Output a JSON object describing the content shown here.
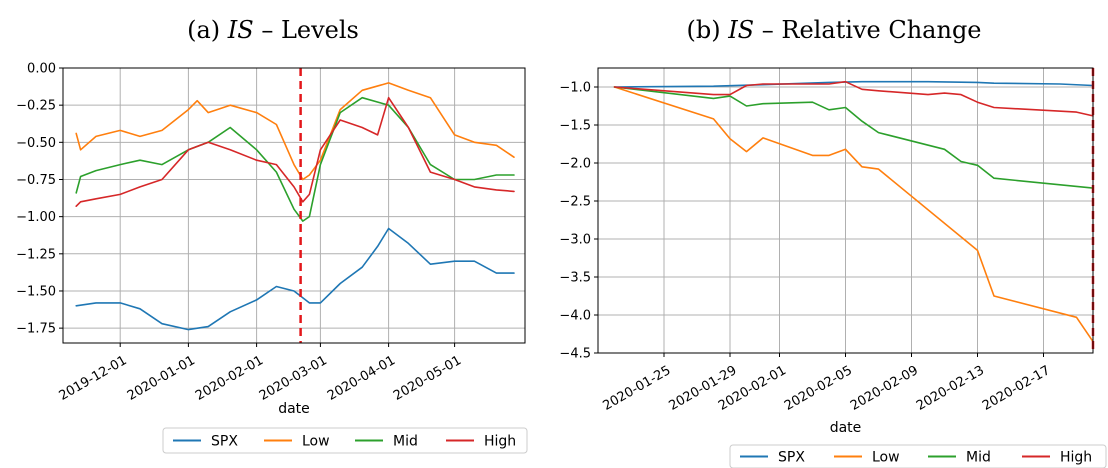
{
  "chart_data": [
    {
      "type": "line",
      "panel": "(a)",
      "title_prefix": "(a)",
      "title_var": "IS",
      "title_suffix": "– Levels",
      "xlabel": "date",
      "ylabel": "",
      "x_type": "date",
      "xlim": [
        "2019-11-05",
        "2020-06-02"
      ],
      "ylim": [
        -1.85,
        0.0
      ],
      "yticks": [
        0.0,
        -0.25,
        -0.5,
        -0.75,
        -1.0,
        -1.25,
        -1.5,
        -1.75
      ],
      "ytick_labels": [
        "0.00",
        "−0.25",
        "−0.50",
        "−0.75",
        "−1.00",
        "−1.25",
        "−1.50",
        "−1.75"
      ],
      "xticks": [
        "2019-12-01",
        "2020-01-01",
        "2020-02-01",
        "2020-03-01",
        "2020-04-01",
        "2020-05-01"
      ],
      "xtick_labels": [
        "2019-12-01",
        "2020-01-01",
        "2020-02-01",
        "2020-03-01",
        "2020-04-01",
        "2020-05-01"
      ],
      "vline_x": "2020-02-21",
      "grid": true,
      "legend": {
        "placement": "bottom-center",
        "entries": [
          "SPX",
          "Low",
          "Mid",
          "High"
        ]
      },
      "series": [
        {
          "name": "SPX",
          "color": "#1f77b4",
          "x": [
            "2019-11-11",
            "2019-11-20",
            "2019-12-01",
            "2019-12-10",
            "2019-12-20",
            "2020-01-01",
            "2020-01-10",
            "2020-01-20",
            "2020-02-01",
            "2020-02-10",
            "2020-02-18",
            "2020-02-25",
            "2020-03-01",
            "2020-03-10",
            "2020-03-20",
            "2020-03-27",
            "2020-04-01",
            "2020-04-10",
            "2020-04-20",
            "2020-05-01",
            "2020-05-10",
            "2020-05-20",
            "2020-05-28"
          ],
          "y": [
            -1.6,
            -1.58,
            -1.58,
            -1.62,
            -1.72,
            -1.76,
            -1.74,
            -1.64,
            -1.56,
            -1.47,
            -1.5,
            -1.58,
            -1.58,
            -1.45,
            -1.34,
            -1.2,
            -1.08,
            -1.18,
            -1.32,
            -1.3,
            -1.3,
            -1.38,
            -1.38
          ]
        },
        {
          "name": "Low",
          "color": "#ff7f0e",
          "x": [
            "2019-11-11",
            "2019-11-13",
            "2019-11-20",
            "2019-12-01",
            "2019-12-10",
            "2019-12-20",
            "2020-01-01",
            "2020-01-05",
            "2020-01-10",
            "2020-01-20",
            "2020-02-01",
            "2020-02-10",
            "2020-02-18",
            "2020-02-22",
            "2020-02-25",
            "2020-03-01",
            "2020-03-10",
            "2020-03-20",
            "2020-04-01",
            "2020-04-10",
            "2020-04-20",
            "2020-05-01",
            "2020-05-10",
            "2020-05-20",
            "2020-05-28"
          ],
          "y": [
            -0.44,
            -0.55,
            -0.46,
            -0.42,
            -0.46,
            -0.42,
            -0.28,
            -0.22,
            -0.3,
            -0.25,
            -0.3,
            -0.38,
            -0.65,
            -0.75,
            -0.72,
            -0.62,
            -0.28,
            -0.15,
            -0.1,
            -0.15,
            -0.2,
            -0.45,
            -0.5,
            -0.52,
            -0.6
          ]
        },
        {
          "name": "Mid",
          "color": "#2ca02c",
          "x": [
            "2019-11-11",
            "2019-11-13",
            "2019-11-20",
            "2019-12-01",
            "2019-12-10",
            "2019-12-20",
            "2020-01-01",
            "2020-01-10",
            "2020-01-20",
            "2020-02-01",
            "2020-02-10",
            "2020-02-18",
            "2020-02-22",
            "2020-02-25",
            "2020-03-01",
            "2020-03-10",
            "2020-03-20",
            "2020-04-01",
            "2020-04-10",
            "2020-04-20",
            "2020-05-01",
            "2020-05-10",
            "2020-05-20",
            "2020-05-28"
          ],
          "y": [
            -0.84,
            -0.73,
            -0.69,
            -0.65,
            -0.62,
            -0.65,
            -0.55,
            -0.5,
            -0.4,
            -0.55,
            -0.7,
            -0.95,
            -1.03,
            -1.0,
            -0.65,
            -0.3,
            -0.2,
            -0.25,
            -0.4,
            -0.65,
            -0.75,
            -0.75,
            -0.72,
            -0.72
          ]
        },
        {
          "name": "High",
          "color": "#d62728",
          "x": [
            "2019-11-11",
            "2019-11-13",
            "2019-11-20",
            "2019-12-01",
            "2019-12-10",
            "2019-12-20",
            "2020-01-01",
            "2020-01-10",
            "2020-01-20",
            "2020-02-01",
            "2020-02-10",
            "2020-02-18",
            "2020-02-22",
            "2020-02-25",
            "2020-03-01",
            "2020-03-10",
            "2020-03-20",
            "2020-03-27",
            "2020-04-01",
            "2020-04-10",
            "2020-04-20",
            "2020-05-01",
            "2020-05-10",
            "2020-05-20",
            "2020-05-28"
          ],
          "y": [
            -0.93,
            -0.9,
            -0.88,
            -0.85,
            -0.8,
            -0.75,
            -0.55,
            -0.5,
            -0.55,
            -0.62,
            -0.65,
            -0.8,
            -0.9,
            -0.85,
            -0.55,
            -0.35,
            -0.4,
            -0.45,
            -0.2,
            -0.4,
            -0.7,
            -0.75,
            -0.8,
            -0.82,
            -0.83
          ]
        }
      ]
    },
    {
      "type": "line",
      "panel": "(b)",
      "title_prefix": "(b)",
      "title_var": "IS",
      "title_suffix": "– Relative Change",
      "xlabel": "date",
      "ylabel": "",
      "x_type": "date",
      "xlim": [
        "2020-01-21",
        "2020-02-20"
      ],
      "ylim": [
        -4.5,
        -0.75
      ],
      "yticks": [
        -1.0,
        -1.5,
        -2.0,
        -2.5,
        -3.0,
        -3.5,
        -4.0,
        -4.5
      ],
      "ytick_labels": [
        "−1.0",
        "−1.5",
        "−2.0",
        "−2.5",
        "−3.0",
        "−3.5",
        "−4.0",
        "−4.5"
      ],
      "xticks": [
        "2020-01-25",
        "2020-01-29",
        "2020-02-01",
        "2020-02-05",
        "2020-02-09",
        "2020-02-13",
        "2020-02-17"
      ],
      "xtick_labels": [
        "2020-01-25",
        "2020-01-29",
        "2020-02-01",
        "2020-02-05",
        "2020-02-09",
        "2020-02-13",
        "2020-02-17"
      ],
      "vline_x": "2020-02-20",
      "grid": true,
      "legend": {
        "placement": "bottom-right",
        "entries": [
          "SPX",
          "Low",
          "Mid",
          "High"
        ]
      },
      "series": [
        {
          "name": "SPX",
          "color": "#1f77b4",
          "x": [
            "2020-01-22",
            "2020-01-28",
            "2020-01-31",
            "2020-02-04",
            "2020-02-06",
            "2020-02-10",
            "2020-02-13",
            "2020-02-14",
            "2020-02-18",
            "2020-02-20"
          ],
          "y": [
            -1.0,
            -0.99,
            -0.97,
            -0.94,
            -0.93,
            -0.93,
            -0.94,
            -0.95,
            -0.96,
            -0.98
          ]
        },
        {
          "name": "Low",
          "color": "#ff7f0e",
          "x": [
            "2020-01-22",
            "2020-01-28",
            "2020-01-29",
            "2020-01-30",
            "2020-01-31",
            "2020-02-03",
            "2020-02-04",
            "2020-02-05",
            "2020-02-06",
            "2020-02-07",
            "2020-02-13",
            "2020-02-14",
            "2020-02-19",
            "2020-02-20"
          ],
          "y": [
            -1.0,
            -1.42,
            -1.68,
            -1.85,
            -1.67,
            -1.9,
            -1.9,
            -1.82,
            -2.05,
            -2.08,
            -3.15,
            -3.75,
            -4.03,
            -4.35
          ]
        },
        {
          "name": "Mid",
          "color": "#2ca02c",
          "x": [
            "2020-01-22",
            "2020-01-28",
            "2020-01-29",
            "2020-01-30",
            "2020-01-31",
            "2020-02-03",
            "2020-02-04",
            "2020-02-05",
            "2020-02-06",
            "2020-02-07",
            "2020-02-11",
            "2020-02-12",
            "2020-02-13",
            "2020-02-14",
            "2020-02-20"
          ],
          "y": [
            -1.0,
            -1.15,
            -1.12,
            -1.25,
            -1.22,
            -1.2,
            -1.3,
            -1.27,
            -1.45,
            -1.6,
            -1.82,
            -1.98,
            -2.03,
            -2.2,
            -2.33
          ]
        },
        {
          "name": "High",
          "color": "#d62728",
          "x": [
            "2020-01-22",
            "2020-01-28",
            "2020-01-29",
            "2020-01-30",
            "2020-01-31",
            "2020-02-03",
            "2020-02-04",
            "2020-02-05",
            "2020-02-06",
            "2020-02-07",
            "2020-02-10",
            "2020-02-11",
            "2020-02-12",
            "2020-02-13",
            "2020-02-14",
            "2020-02-19",
            "2020-02-20"
          ],
          "y": [
            -1.0,
            -1.1,
            -1.1,
            -0.98,
            -0.96,
            -0.96,
            -0.96,
            -0.93,
            -1.03,
            -1.05,
            -1.1,
            -1.08,
            -1.1,
            -1.2,
            -1.27,
            -1.33,
            -1.38
          ]
        }
      ]
    }
  ]
}
